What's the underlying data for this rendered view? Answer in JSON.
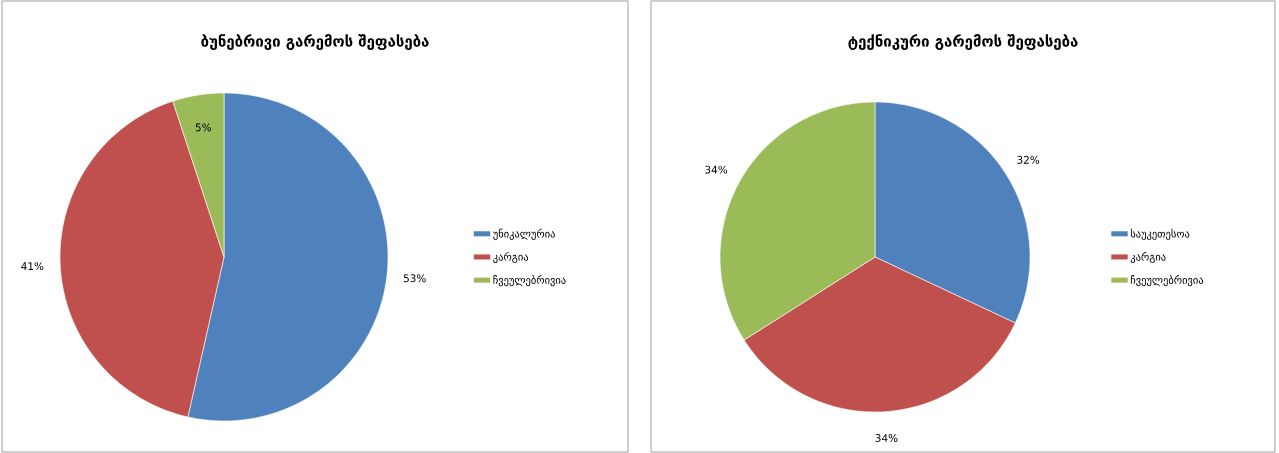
{
  "chart_data": [
    {
      "type": "pie",
      "title": "ბუნებრივი გარემოს შეფასება",
      "categories": [
        "უნიკალურია",
        "კარგია",
        "ჩვეულებრივია"
      ],
      "values": [
        53,
        41,
        5
      ],
      "value_labels": [
        "53%",
        "41%",
        "5%"
      ],
      "colors": [
        "#4f81bd",
        "#c0504d",
        "#9bbb59"
      ],
      "legend": "right"
    },
    {
      "type": "pie",
      "title": "ტექნიკური გარემოს შეფასება",
      "categories": [
        "საუკეთესოა",
        "კარგია",
        "ჩვეულებრივია"
      ],
      "values": [
        32,
        34,
        34
      ],
      "value_labels": [
        "32%",
        "34%",
        "34%"
      ],
      "colors": [
        "#4f81bd",
        "#c0504d",
        "#9bbb59"
      ],
      "legend": "right"
    }
  ]
}
